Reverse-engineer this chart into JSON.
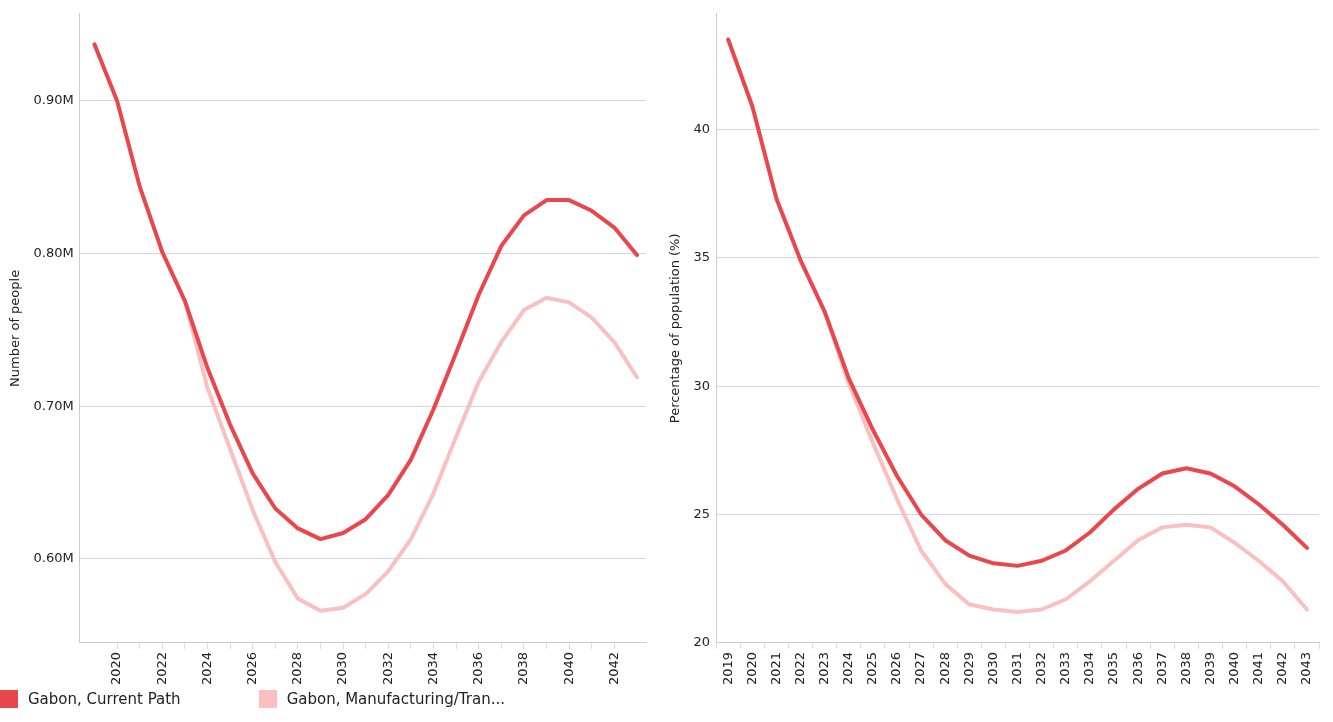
{
  "chart_data": [
    {
      "type": "line",
      "ylabel": "Number of people",
      "x": [
        2019,
        2020,
        2021,
        2022,
        2023,
        2024,
        2025,
        2026,
        2027,
        2028,
        2029,
        2030,
        2031,
        2032,
        2033,
        2034,
        2035,
        2036,
        2037,
        2038,
        2039,
        2040,
        2041,
        2042,
        2043
      ],
      "xlim": [
        2018.35,
        2043.4
      ],
      "xticks": [
        2020,
        {
          "value": 2021,
          "label": null
        },
        2022,
        {
          "value": 2023,
          "label": null
        },
        2024,
        {
          "value": 2025,
          "label": null
        },
        2026,
        {
          "value": 2027,
          "label": null
        },
        2028,
        {
          "value": 2029,
          "label": null
        },
        2030,
        {
          "value": 2031,
          "label": null
        },
        2032,
        {
          "value": 2033,
          "label": null
        },
        2034,
        {
          "value": 2035,
          "label": null
        },
        2036,
        {
          "value": 2037,
          "label": null
        },
        2038,
        {
          "value": 2039,
          "label": null
        },
        2040,
        {
          "value": 2041,
          "label": null
        },
        2042
      ],
      "ylim": [
        0.545,
        0.957
      ],
      "yticks": [
        {
          "value": 0.6,
          "label": "0.60M"
        },
        {
          "value": 0.7,
          "label": "0.70M"
        },
        {
          "value": 0.8,
          "label": "0.80M"
        },
        {
          "value": 0.9,
          "label": "0.90M"
        }
      ],
      "grid": "y",
      "legend": "bottom left",
      "marker": "none",
      "line_style": "solid",
      "series": [
        {
          "name": "Gabon, Current Path",
          "color": "#e8474c",
          "values": [
            0.937,
            0.9,
            0.844,
            0.801,
            0.769,
            0.725,
            0.688,
            0.656,
            0.633,
            0.62,
            0.613,
            0.617,
            0.626,
            0.642,
            0.665,
            0.698,
            0.735,
            0.773,
            0.805,
            0.825,
            0.835,
            0.835,
            0.828,
            0.817,
            0.799
          ]
        },
        {
          "name": "Gabon, Manufacturing/Tran...",
          "color": "#f9c0c0",
          "values": [
            null,
            null,
            null,
            null,
            0.769,
            0.712,
            0.672,
            0.632,
            0.598,
            0.574,
            0.566,
            0.568,
            0.577,
            0.592,
            0.613,
            0.643,
            0.68,
            0.716,
            0.742,
            0.763,
            0.771,
            0.768,
            0.758,
            0.742,
            0.719
          ]
        }
      ]
    },
    {
      "type": "line",
      "ylabel": "Percentage of population (%)",
      "categories": [
        "2019",
        "2020",
        "2021",
        "2022",
        "2023",
        "2024",
        "2025",
        "2026",
        "2027",
        "2028",
        "2029",
        "2030",
        "2031",
        "2032",
        "2033",
        "2034",
        "2035",
        "2036",
        "2037",
        "2038",
        "2039",
        "2040",
        "2041",
        "2042",
        "2043"
      ],
      "ylim": [
        20,
        44.5
      ],
      "yticks": [
        20,
        25,
        30,
        35,
        40
      ],
      "grid": "y",
      "legend": false,
      "marker": "none",
      "line_style": "solid",
      "series": [
        {
          "color": "#e8474c",
          "values": [
            43.5,
            40.9,
            37.3,
            34.9,
            32.9,
            30.3,
            28.3,
            26.5,
            25.0,
            24.0,
            23.4,
            23.1,
            23.0,
            23.2,
            23.6,
            24.3,
            25.2,
            26.0,
            26.6,
            26.8,
            26.6,
            26.1,
            25.4,
            24.6,
            23.7
          ]
        },
        {
          "color": "#f9c0c0",
          "values": [
            null,
            null,
            null,
            null,
            32.9,
            30.1,
            27.8,
            25.6,
            23.6,
            22.3,
            21.5,
            21.3,
            21.2,
            21.3,
            21.7,
            22.4,
            23.2,
            24.0,
            24.5,
            24.6,
            24.5,
            23.9,
            23.2,
            22.4,
            21.3
          ]
        }
      ]
    }
  ]
}
